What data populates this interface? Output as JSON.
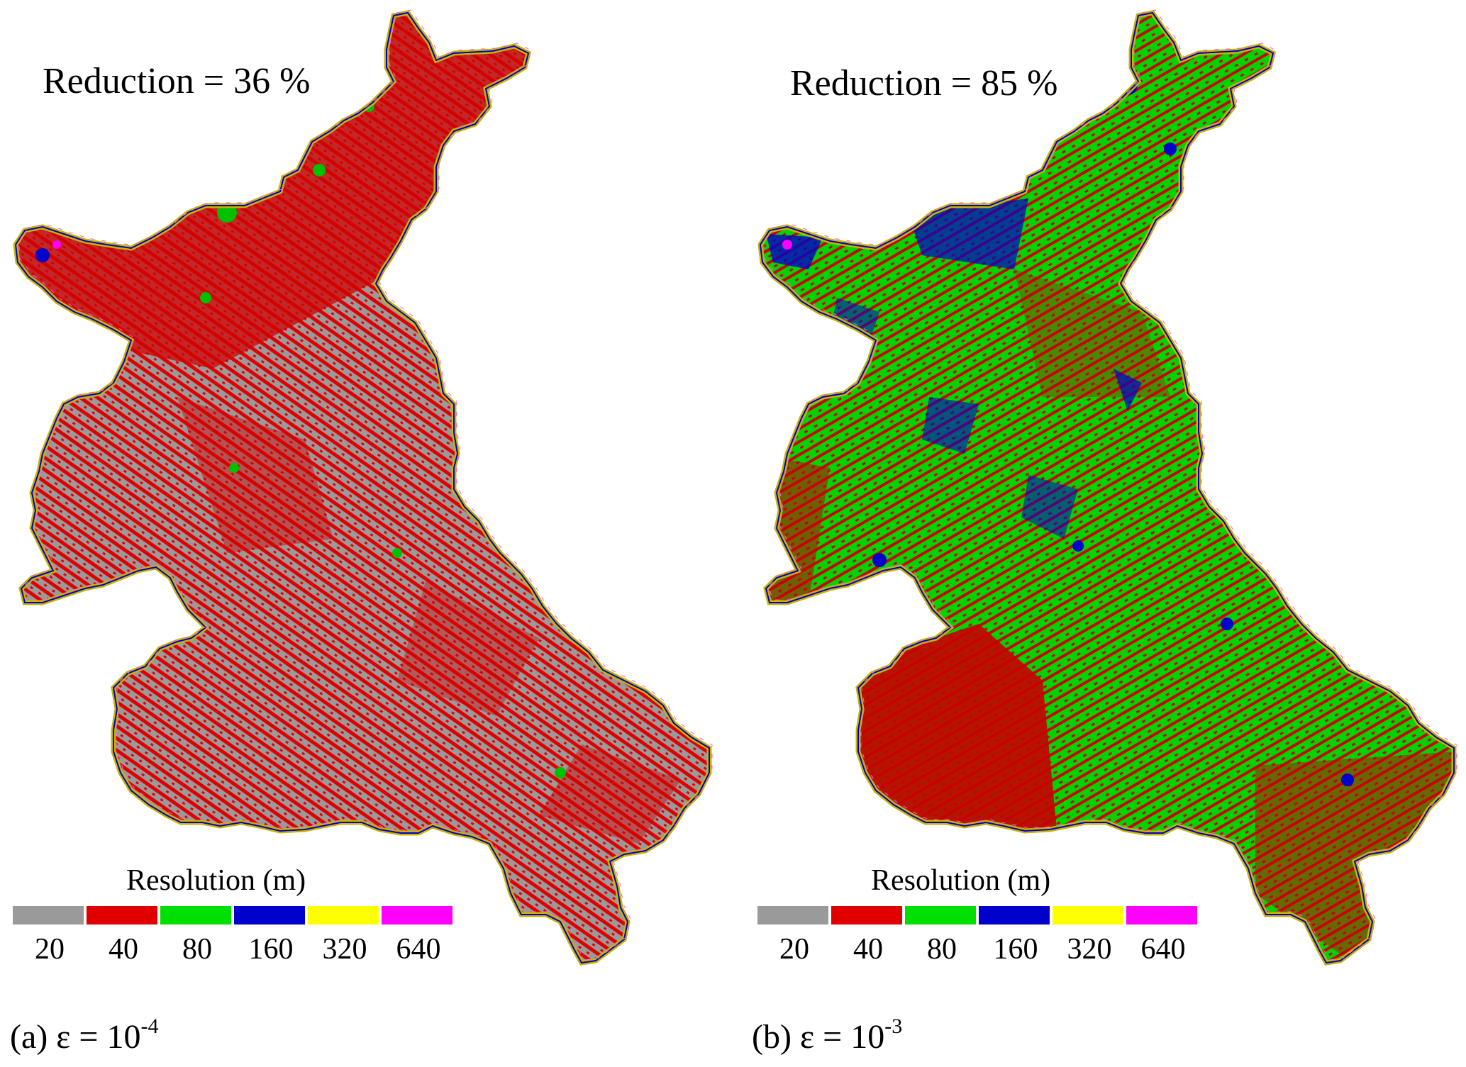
{
  "legend_colors": {
    "20": "#9a9a9a",
    "40": "#e10000",
    "80": "#00e000",
    "160": "#0000cc",
    "320": "#ffff00",
    "640": "#ff00ff"
  },
  "panels": [
    {
      "id": "a",
      "reduction": "Reduction = 36 %",
      "legend_title": "Resolution (m)",
      "legend_values": [
        "20",
        "40",
        "80",
        "160",
        "320",
        "640"
      ],
      "caption_prefix": "(a) ε = 10",
      "caption_exponent": "-4",
      "dominant_resolution": "20",
      "secondary_resolution": "40"
    },
    {
      "id": "b",
      "reduction": "Reduction = 85 %",
      "legend_title": "Resolution (m)",
      "legend_values": [
        "20",
        "40",
        "80",
        "160",
        "320",
        "640"
      ],
      "caption_prefix": "(b) ε = 10",
      "caption_exponent": "-3",
      "dominant_resolution": "80",
      "secondary_resolution": "40"
    }
  ]
}
